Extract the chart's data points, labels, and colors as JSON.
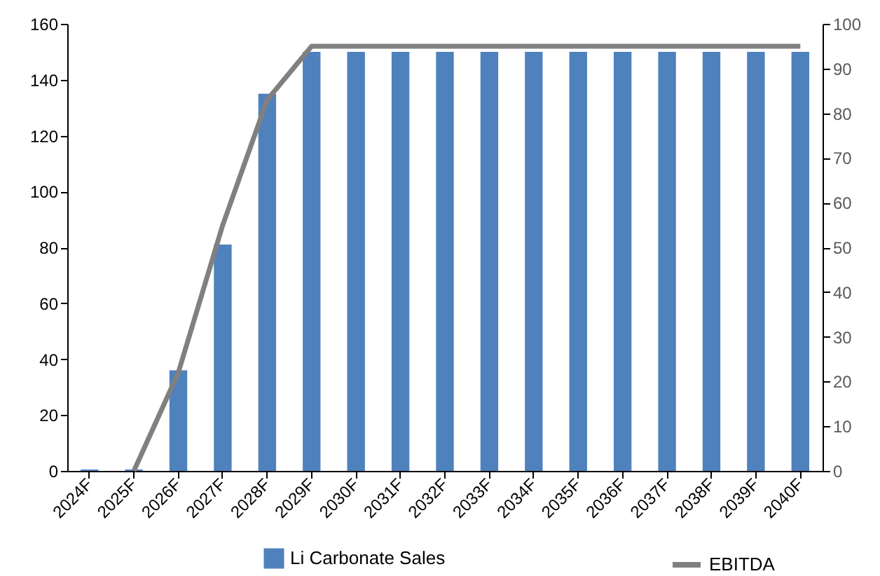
{
  "chart_data": {
    "type": "bar",
    "categories": [
      "2024F",
      "2025F",
      "2026F",
      "2027F",
      "2028F",
      "2029F",
      "2030F",
      "2031F",
      "2032F",
      "2033F",
      "2034F",
      "2035F",
      "2036F",
      "2037F",
      "2038F",
      "2039F",
      "2040F"
    ],
    "series": [
      {
        "name": "Li Carbonate Sales",
        "color": "#4f81bd",
        "values": [
          0.5,
          0.5,
          36,
          81,
          135,
          150,
          150,
          150,
          150,
          150,
          150,
          150,
          150,
          150,
          150,
          150,
          150
        ]
      },
      {
        "name": "EBITDA",
        "type": "line",
        "axis": "y2",
        "color": "#808080",
        "values": [
          null,
          0,
          22,
          55,
          83,
          95,
          95,
          95,
          95,
          95,
          95,
          95,
          95,
          95,
          95,
          95,
          95
        ]
      }
    ],
    "ylim": [
      0,
      160
    ],
    "yticks": [
      0,
      20,
      40,
      60,
      80,
      100,
      120,
      140,
      160
    ],
    "y2lim": [
      0,
      100
    ],
    "y2ticks": [
      0,
      10,
      20,
      30,
      40,
      50,
      60,
      70,
      80,
      90,
      100
    ],
    "grid": false,
    "legend": "bottom",
    "marker": "none",
    "line_style": "solid"
  }
}
